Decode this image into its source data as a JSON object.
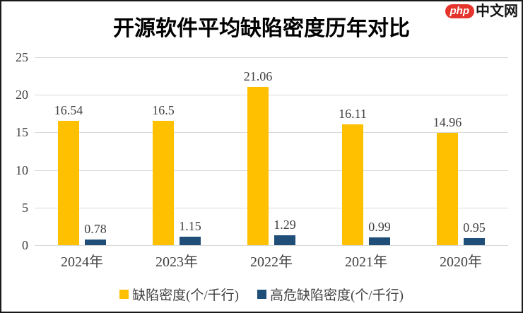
{
  "logo": {
    "badge_text": "php",
    "site_text": "中文网",
    "badge_color": "#e5342c",
    "text_color": "#141414"
  },
  "chart_data": {
    "type": "bar",
    "title": "开源软件平均缺陷密度历年对比",
    "categories": [
      "2024年",
      "2023年",
      "2022年",
      "2021年",
      "2020年"
    ],
    "series": [
      {
        "name": "缺陷密度(个/千行)",
        "color": "#FFC000",
        "values": [
          16.54,
          16.5,
          21.06,
          16.11,
          14.96
        ]
      },
      {
        "name": "高危缺陷密度(个/千行)",
        "color": "#1F4E79",
        "values": [
          0.78,
          1.15,
          1.29,
          0.99,
          0.95
        ]
      }
    ],
    "value_labels": [
      [
        "16.54",
        "16.5",
        "21.06",
        "16.11",
        "14.96"
      ],
      [
        "0.78",
        "1.15",
        "1.29",
        "0.99",
        "0.95"
      ]
    ],
    "xlabel": "",
    "ylabel": "",
    "y_axis": {
      "min": 0,
      "max": 25,
      "step": 5,
      "ticks": [
        "0",
        "5",
        "10",
        "15",
        "20",
        "25"
      ]
    },
    "ylim": [
      0,
      25
    ],
    "grid": true,
    "gridline_color": "#d9d9d9",
    "label_color": "#404040",
    "legend_position": "bottom"
  }
}
